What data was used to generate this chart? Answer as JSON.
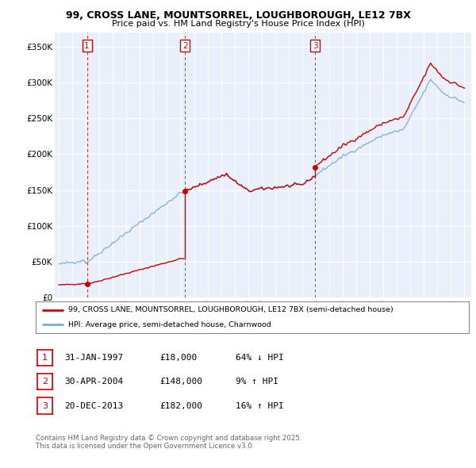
{
  "title1": "99, CROSS LANE, MOUNTSORREL, LOUGHBOROUGH, LE12 7BX",
  "title2": "Price paid vs. HM Land Registry's House Price Index (HPI)",
  "ylim": [
    0,
    370000
  ],
  "yticks": [
    0,
    50000,
    100000,
    150000,
    200000,
    250000,
    300000,
    350000
  ],
  "ytick_labels": [
    "£0",
    "£50K",
    "£100K",
    "£150K",
    "£200K",
    "£250K",
    "£300K",
    "£350K"
  ],
  "background_color": "#eaf0fb",
  "plot_bg_color": "#eaf0fb",
  "sale_color": "#cc0000",
  "hpi_color": "#7aadd4",
  "s1_year": 1997.083,
  "s1_price": 18000,
  "s2_year": 2004.33,
  "s2_price": 148000,
  "s3_year": 2013.96,
  "s3_price": 182000,
  "legend_line1": "99, CROSS LANE, MOUNTSORREL, LOUGHBOROUGH, LE12 7BX (semi-detached house)",
  "legend_line2": "HPI: Average price, semi-detached house, Charnwood",
  "table_rows": [
    [
      "1",
      "31-JAN-1997",
      "£18,000",
      "64% ↓ HPI"
    ],
    [
      "2",
      "30-APR-2004",
      "£148,000",
      "9% ↑ HPI"
    ],
    [
      "3",
      "20-DEC-2013",
      "£182,000",
      "16% ↑ HPI"
    ]
  ],
  "footnote": "Contains HM Land Registry data © Crown copyright and database right 2025.\nThis data is licensed under the Open Government Licence v3.0.",
  "xlim": [
    1994.7,
    2025.5
  ],
  "xticks": [
    1995,
    1996,
    1997,
    1998,
    1999,
    2000,
    2001,
    2002,
    2003,
    2004,
    2005,
    2006,
    2007,
    2008,
    2009,
    2010,
    2011,
    2012,
    2013,
    2014,
    2015,
    2016,
    2017,
    2018,
    2019,
    2020,
    2021,
    2022,
    2023,
    2024,
    2025
  ]
}
